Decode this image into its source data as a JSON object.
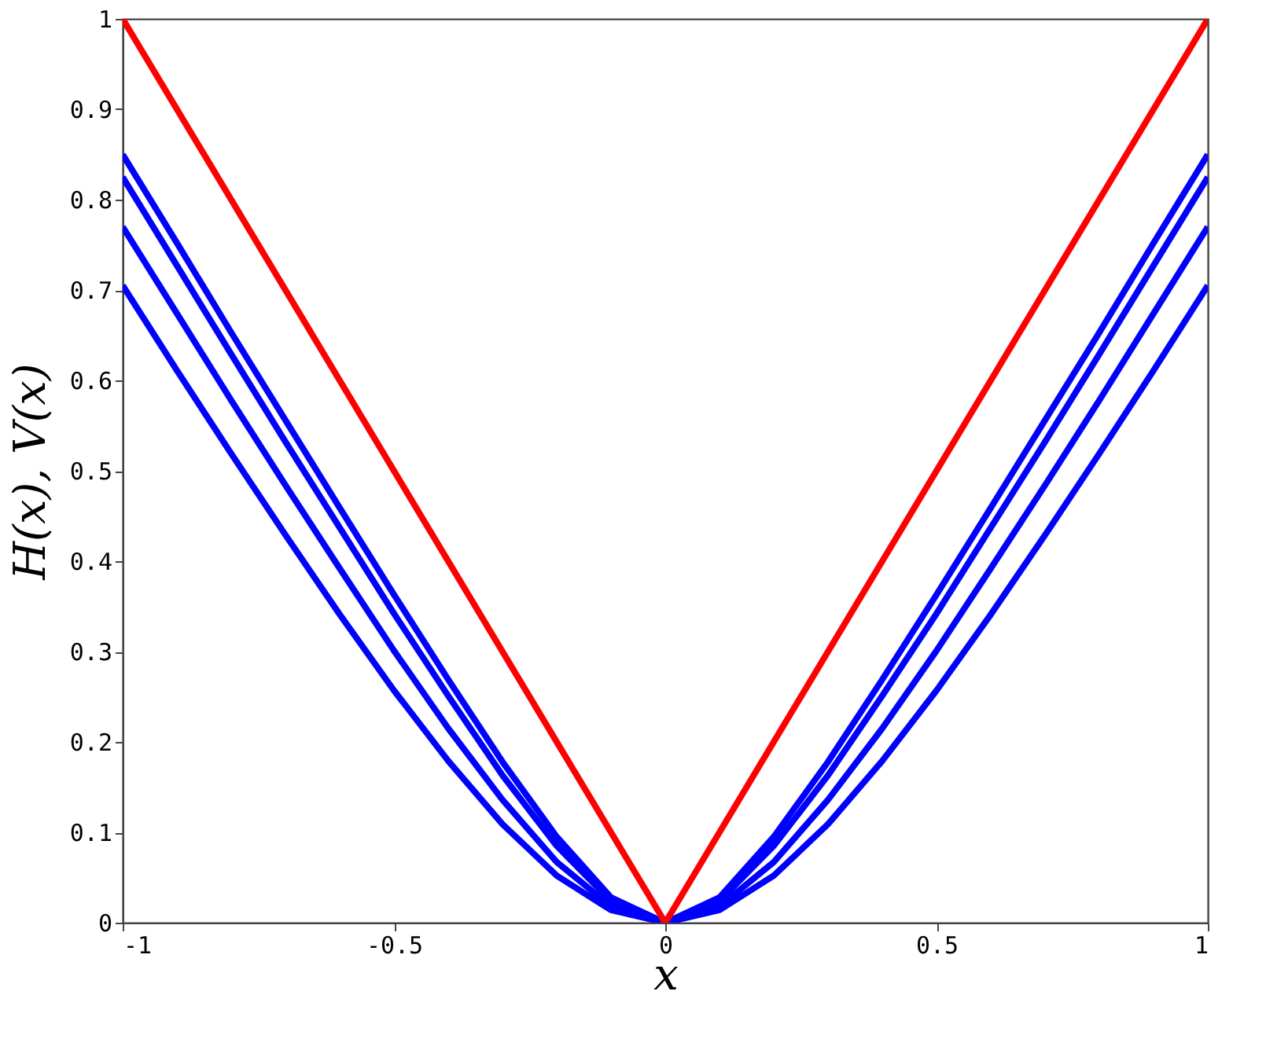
{
  "chart_data": {
    "type": "line",
    "xlabel": "x",
    "ylabel": "H(x), V(x)",
    "xlim": [
      -1,
      1
    ],
    "ylim": [
      0,
      1
    ],
    "xticks": [
      -1,
      -0.5,
      0,
      0.5,
      1
    ],
    "yticks": [
      0,
      0.1,
      0.2,
      0.3,
      0.4,
      0.5,
      0.6,
      0.7,
      0.8,
      0.9,
      1
    ],
    "grid": false,
    "legend": false,
    "marker": "none",
    "line_style": "solid",
    "series": [
      {
        "color": "#0000ff",
        "x": [
          -1,
          -0.9,
          -0.8,
          -0.7,
          -0.6,
          -0.5,
          -0.4,
          -0.3,
          -0.2,
          -0.1,
          0,
          0.1,
          0.2,
          0.3,
          0.4,
          0.5,
          0.6,
          0.7,
          0.8,
          0.9,
          1
        ],
        "values": [
          0.85,
          0.752,
          0.653,
          0.556,
          0.459,
          0.363,
          0.269,
          0.178,
          0.095,
          0.028,
          0,
          0.028,
          0.095,
          0.178,
          0.269,
          0.363,
          0.459,
          0.556,
          0.653,
          0.752,
          0.85
        ]
      },
      {
        "color": "#0000ff",
        "x": [
          -1,
          -0.9,
          -0.8,
          -0.7,
          -0.6,
          -0.5,
          -0.4,
          -0.3,
          -0.2,
          -0.1,
          0,
          0.1,
          0.2,
          0.3,
          0.4,
          0.5,
          0.6,
          0.7,
          0.8,
          0.9,
          1
        ],
        "values": [
          0.825,
          0.727,
          0.629,
          0.532,
          0.437,
          0.342,
          0.251,
          0.163,
          0.085,
          0.024,
          0,
          0.024,
          0.085,
          0.163,
          0.251,
          0.342,
          0.437,
          0.532,
          0.629,
          0.727,
          0.825
        ]
      },
      {
        "color": "#0000ff",
        "x": [
          -1,
          -0.9,
          -0.8,
          -0.7,
          -0.6,
          -0.5,
          -0.4,
          -0.3,
          -0.2,
          -0.1,
          0,
          0.1,
          0.2,
          0.3,
          0.4,
          0.5,
          0.6,
          0.7,
          0.8,
          0.9,
          1
        ],
        "values": [
          0.77,
          0.674,
          0.578,
          0.484,
          0.392,
          0.301,
          0.215,
          0.136,
          0.067,
          0.018,
          0,
          0.018,
          0.067,
          0.136,
          0.215,
          0.301,
          0.392,
          0.484,
          0.578,
          0.674,
          0.77
        ]
      },
      {
        "color": "#0000ff",
        "x": [
          -1,
          -0.9,
          -0.8,
          -0.7,
          -0.6,
          -0.5,
          -0.4,
          -0.3,
          -0.2,
          -0.1,
          0,
          0.1,
          0.2,
          0.3,
          0.4,
          0.5,
          0.6,
          0.7,
          0.8,
          0.9,
          1
        ],
        "values": [
          0.705,
          0.611,
          0.519,
          0.429,
          0.341,
          0.257,
          0.179,
          0.109,
          0.052,
          0.014,
          0,
          0.014,
          0.052,
          0.109,
          0.179,
          0.257,
          0.341,
          0.429,
          0.519,
          0.611,
          0.705
        ]
      },
      {
        "color": "#ff0000",
        "x": [
          -1,
          0,
          1
        ],
        "values": [
          1,
          0,
          1
        ]
      }
    ]
  }
}
